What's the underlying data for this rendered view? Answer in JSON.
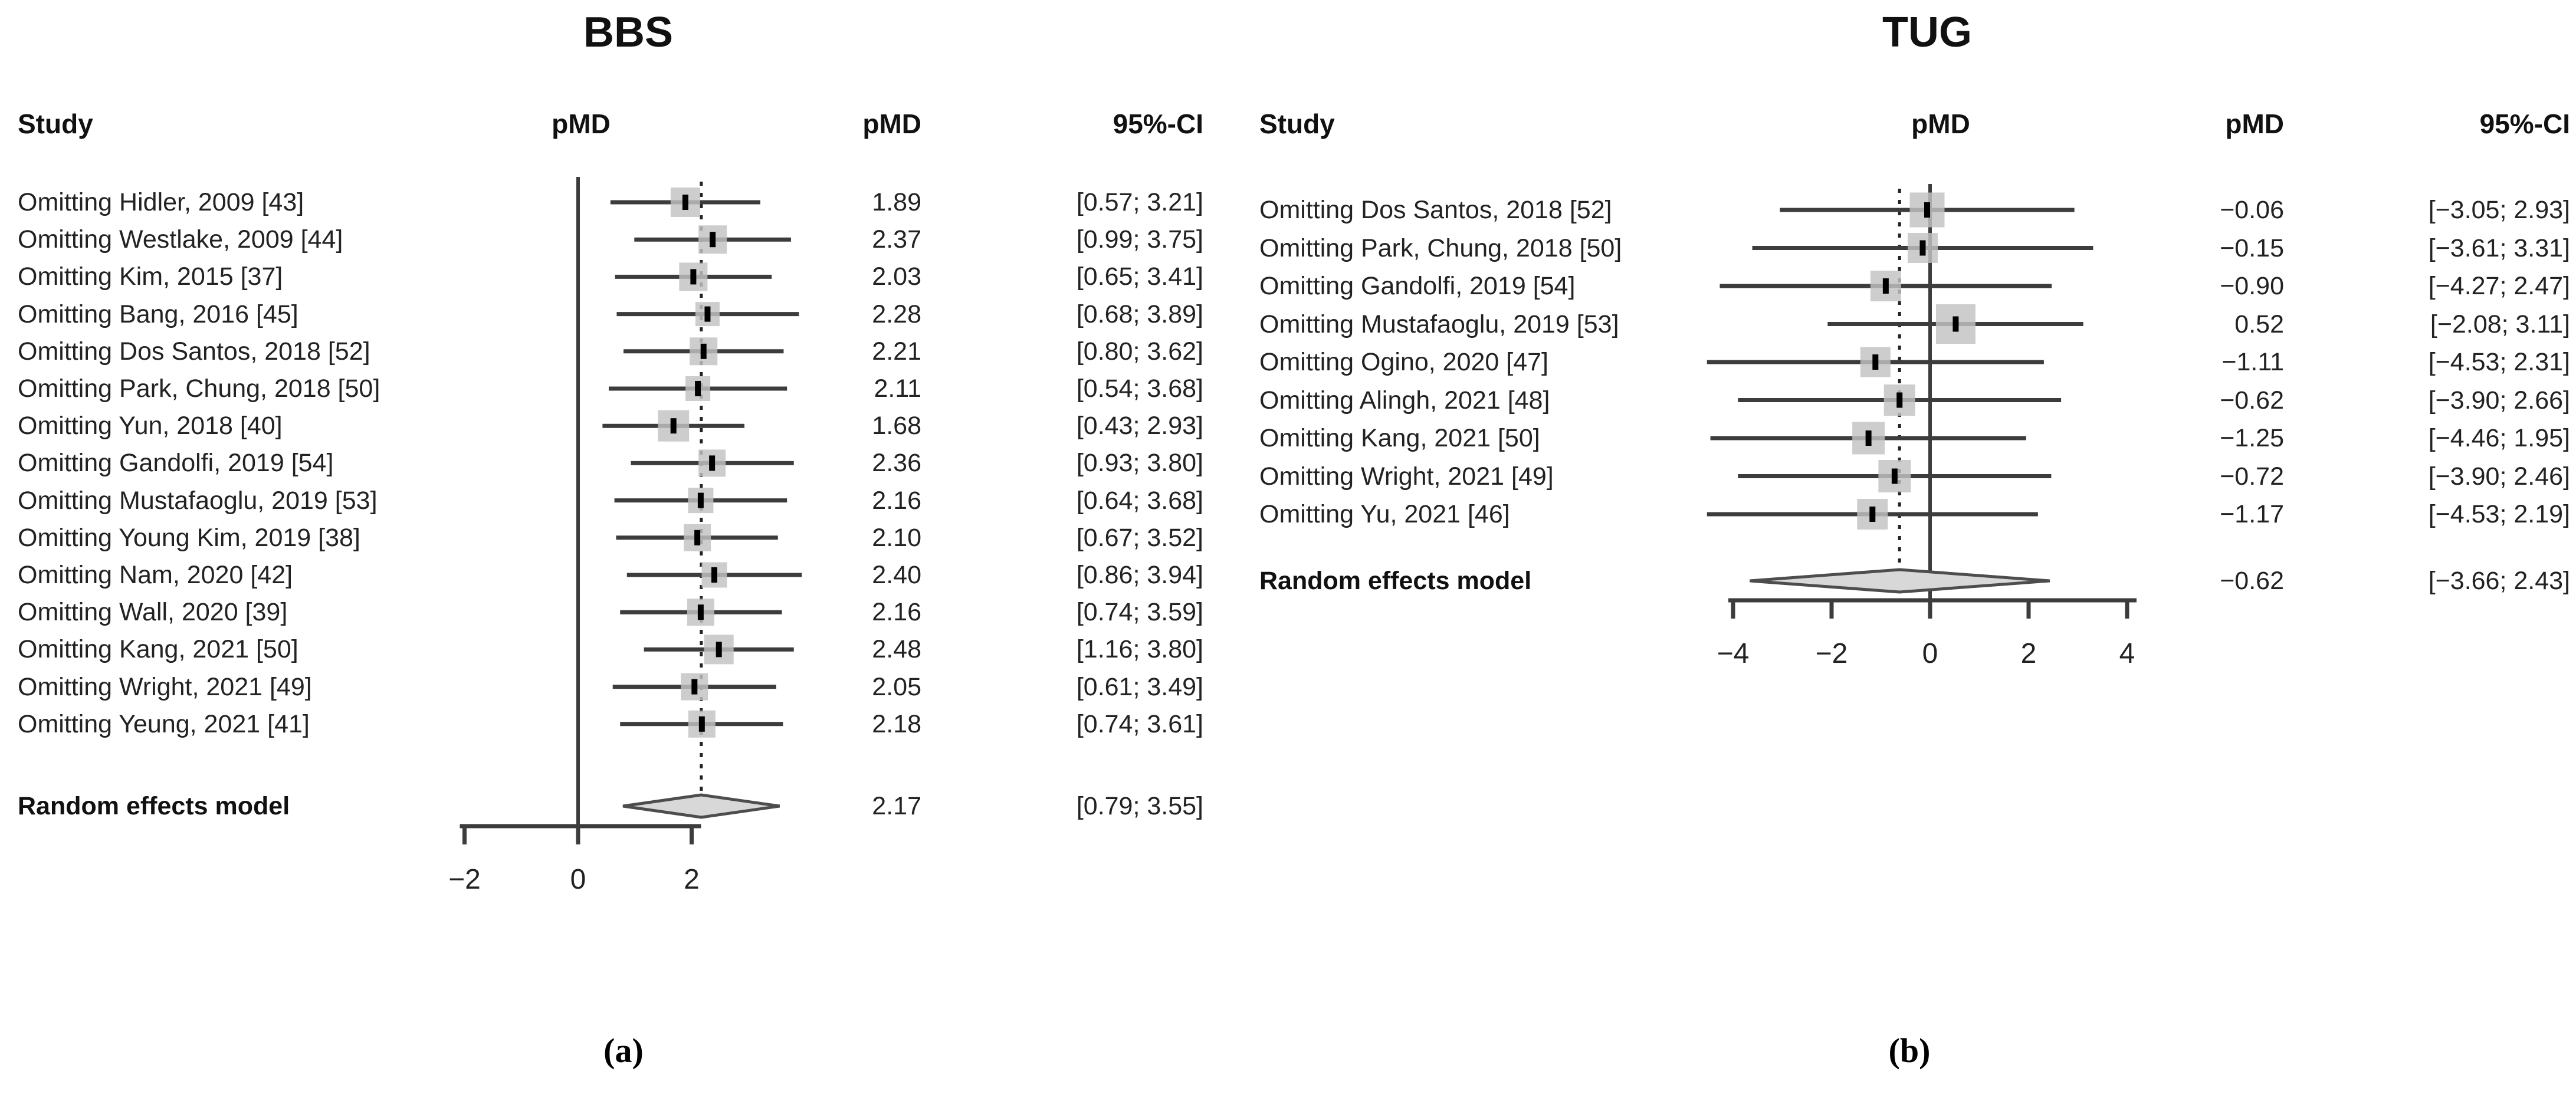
{
  "figure": {
    "caption_a": "(a)",
    "caption_b": "(b)"
  },
  "colors": {
    "background": "#ffffff",
    "text": "#1b1b1b",
    "line": "#3c3c3c",
    "dashed_line": "#222222",
    "square_fill": "#c2c2c2",
    "marker": "#000000",
    "diamond_fill": "#d8d8d8",
    "diamond_stroke": "#4d4d4d"
  },
  "chart_data": [
    {
      "type": "forest",
      "panel": "a",
      "title": "BBS",
      "columns": {
        "study": "Study",
        "plot": "pMD",
        "estimate": "pMD",
        "ci": "95%-CI"
      },
      "xlim": [
        -2,
        2
      ],
      "ticks": [
        {
          "v": -2,
          "label": "−2"
        },
        {
          "v": 0,
          "label": "0"
        },
        {
          "v": 2,
          "label": "2"
        }
      ],
      "grid": false,
      "zero_line": 0,
      "pooled_line": 2.17,
      "studies": [
        {
          "label": "Omitting Hidler, 2009 [43]",
          "pmd": "1.89",
          "ci": "[0.57; 3.21]",
          "value": 1.89,
          "lo": 0.57,
          "hi": 3.21
        },
        {
          "label": "Omitting Westlake, 2009 [44]",
          "pmd": "2.37",
          "ci": "[0.99; 3.75]",
          "value": 2.37,
          "lo": 0.99,
          "hi": 3.75
        },
        {
          "label": "Omitting Kim, 2015 [37]",
          "pmd": "2.03",
          "ci": "[0.65; 3.41]",
          "value": 2.03,
          "lo": 0.65,
          "hi": 3.41
        },
        {
          "label": "Omitting Bang, 2016 [45]",
          "pmd": "2.28",
          "ci": "[0.68; 3.89]",
          "value": 2.28,
          "lo": 0.68,
          "hi": 3.89
        },
        {
          "label": "Omitting Dos Santos, 2018 [52]",
          "pmd": "2.21",
          "ci": "[0.80; 3.62]",
          "value": 2.21,
          "lo": 0.8,
          "hi": 3.62
        },
        {
          "label": "Omitting Park, Chung, 2018 [50]",
          "pmd": "2.11",
          "ci": "[0.54; 3.68]",
          "value": 2.11,
          "lo": 0.54,
          "hi": 3.68
        },
        {
          "label": "Omitting Yun, 2018 [40]",
          "pmd": "1.68",
          "ci": "[0.43; 2.93]",
          "value": 1.68,
          "lo": 0.43,
          "hi": 2.93
        },
        {
          "label": "Omitting Gandolfi, 2019 [54]",
          "pmd": "2.36",
          "ci": "[0.93; 3.80]",
          "value": 2.36,
          "lo": 0.93,
          "hi": 3.8
        },
        {
          "label": "Omitting Mustafaoglu, 2019 [53]",
          "pmd": "2.16",
          "ci": "[0.64; 3.68]",
          "value": 2.16,
          "lo": 0.64,
          "hi": 3.68
        },
        {
          "label": "Omitting Young Kim, 2019 [38]",
          "pmd": "2.10",
          "ci": "[0.67; 3.52]",
          "value": 2.1,
          "lo": 0.67,
          "hi": 3.52
        },
        {
          "label": "Omitting Nam, 2020 [42]",
          "pmd": "2.40",
          "ci": "[0.86; 3.94]",
          "value": 2.4,
          "lo": 0.86,
          "hi": 3.94
        },
        {
          "label": "Omitting Wall, 2020 [39]",
          "pmd": "2.16",
          "ci": "[0.74; 3.59]",
          "value": 2.16,
          "lo": 0.74,
          "hi": 3.59
        },
        {
          "label": "Omitting Kang, 2021 [50]",
          "pmd": "2.48",
          "ci": "[1.16; 3.80]",
          "value": 2.48,
          "lo": 1.16,
          "hi": 3.8
        },
        {
          "label": "Omitting Wright, 2021 [49]",
          "pmd": "2.05",
          "ci": "[0.61; 3.49]",
          "value": 2.05,
          "lo": 0.61,
          "hi": 3.49
        },
        {
          "label": "Omitting Yeung, 2021 [41]",
          "pmd": "2.18",
          "ci": "[0.74; 3.61]",
          "value": 2.18,
          "lo": 0.74,
          "hi": 3.61
        }
      ],
      "summary": {
        "label": "Random effects model",
        "pmd": "2.17",
        "ci": "[0.79; 3.55]",
        "value": 2.17,
        "lo": 0.79,
        "hi": 3.55
      }
    },
    {
      "type": "forest",
      "panel": "b",
      "title": "TUG",
      "columns": {
        "study": "Study",
        "plot": "pMD",
        "estimate": "pMD",
        "ci": "95%-CI"
      },
      "xlim": [
        -4,
        4
      ],
      "ticks": [
        {
          "v": -4,
          "label": "−4"
        },
        {
          "v": -2,
          "label": "−2"
        },
        {
          "v": 0,
          "label": "0"
        },
        {
          "v": 2,
          "label": "2"
        },
        {
          "v": 4,
          "label": "4"
        }
      ],
      "grid": false,
      "zero_line": 0,
      "pooled_line": -0.62,
      "studies": [
        {
          "label": "Omitting Dos Santos, 2018 [52]",
          "pmd": "−0.06",
          "ci": "[−3.05; 2.93]",
          "value": -0.06,
          "lo": -3.05,
          "hi": 2.93
        },
        {
          "label": "Omitting Park, Chung, 2018 [50]",
          "pmd": "−0.15",
          "ci": "[−3.61; 3.31]",
          "value": -0.15,
          "lo": -3.61,
          "hi": 3.31
        },
        {
          "label": "Omitting Gandolfi, 2019 [54]",
          "pmd": "−0.90",
          "ci": "[−4.27; 2.47]",
          "value": -0.9,
          "lo": -4.27,
          "hi": 2.47
        },
        {
          "label": "Omitting Mustafaoglu, 2019 [53]",
          "pmd": "0.52",
          "ci": "[−2.08; 3.11]",
          "value": 0.52,
          "lo": -2.08,
          "hi": 3.11
        },
        {
          "label": "Omitting Ogino, 2020 [47]",
          "pmd": "−1.11",
          "ci": "[−4.53; 2.31]",
          "value": -1.11,
          "lo": -4.53,
          "hi": 2.31
        },
        {
          "label": "Omitting Alingh, 2021 [48]",
          "pmd": "−0.62",
          "ci": "[−3.90; 2.66]",
          "value": -0.62,
          "lo": -3.9,
          "hi": 2.66
        },
        {
          "label": "Omitting Kang, 2021 [50]",
          "pmd": "−1.25",
          "ci": "[−4.46; 1.95]",
          "value": -1.25,
          "lo": -4.46,
          "hi": 1.95
        },
        {
          "label": "Omitting Wright, 2021 [49]",
          "pmd": "−0.72",
          "ci": "[−3.90; 2.46]",
          "value": -0.72,
          "lo": -3.9,
          "hi": 2.46
        },
        {
          "label": "Omitting Yu, 2021 [46]",
          "pmd": "−1.17",
          "ci": "[−4.53; 2.19]",
          "value": -1.17,
          "lo": -4.53,
          "hi": 2.19
        }
      ],
      "summary": {
        "label": "Random effects model",
        "pmd": "−0.62",
        "ci": "[−3.66; 2.43]",
        "value": -0.62,
        "lo": -3.66,
        "hi": 2.43
      }
    }
  ]
}
